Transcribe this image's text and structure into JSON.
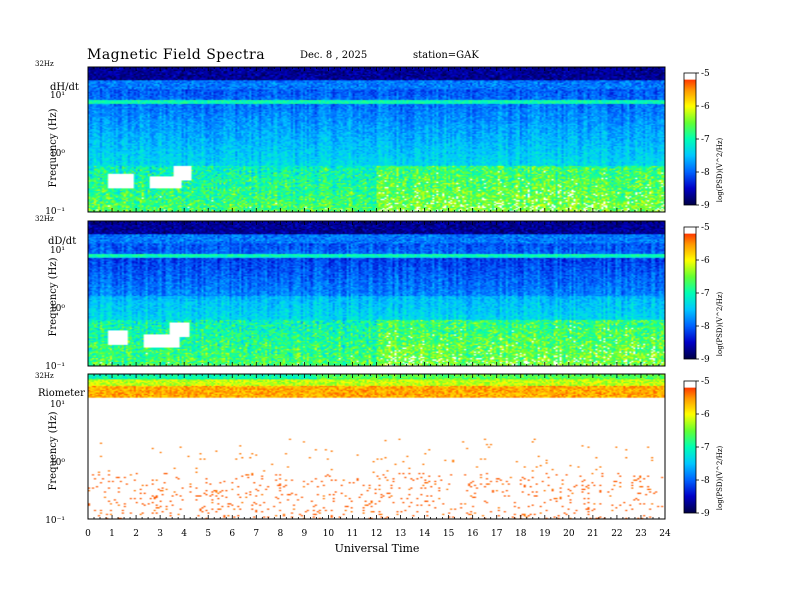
{
  "header": {
    "title": "Magnetic  Field  Spectra",
    "date": "Dec. 8  , 2025",
    "station": "station=GAK"
  },
  "colors": {
    "cmap": [
      "#00004a",
      "#0000c8",
      "#0064ff",
      "#00c8ff",
      "#00ffb4",
      "#64ff32",
      "#ffff00",
      "#ff9600",
      "#ff0000",
      "#ffffff"
    ]
  },
  "chart_data": [
    {
      "type": "heatmap",
      "panel_label": "dH/dt",
      "ylabel": "Frequency  (Hz)",
      "top_label": "32Hz",
      "ytick_labels": [
        "10¹",
        "10⁰",
        "10⁻¹"
      ],
      "y_range_log10_hz": [
        -1,
        1.505
      ],
      "x_range_hours": [
        0,
        24
      ],
      "colorbar": {
        "label": "log(PSD)(V^2/Hz)",
        "ticks": [
          "-5",
          "-6",
          "-7",
          "-8",
          "-9"
        ],
        "range": [
          -9,
          -5
        ]
      },
      "blank_regions": [
        {
          "hours": [
            0.8,
            1.9
          ],
          "log10_hz": [
            -0.6,
            -0.35
          ]
        },
        {
          "hours": [
            2.5,
            3.9
          ],
          "log10_hz": [
            -0.6,
            -0.4
          ]
        },
        {
          "hours": [
            3.5,
            4.3
          ],
          "log10_hz": [
            -0.45,
            -0.2
          ]
        }
      ]
    },
    {
      "type": "heatmap",
      "panel_label": "dD/dt",
      "ylabel": "Frequency  (Hz)",
      "top_label": "32Hz",
      "ytick_labels": [
        "10¹",
        "10⁰",
        "10⁻¹"
      ],
      "y_range_log10_hz": [
        -1,
        1.505
      ],
      "x_range_hours": [
        0,
        24
      ],
      "colorbar": {
        "label": "log(PSD)(V^2/Hz)",
        "ticks": [
          "-5",
          "-6",
          "-7",
          "-8",
          "-9"
        ],
        "range": [
          -9,
          -5
        ]
      },
      "blank_regions": [
        {
          "hours": [
            0.8,
            1.6
          ],
          "log10_hz": [
            -0.65,
            -0.4
          ]
        },
        {
          "hours": [
            2.3,
            3.8
          ],
          "log10_hz": [
            -0.7,
            -0.45
          ]
        },
        {
          "hours": [
            3.4,
            4.2
          ],
          "log10_hz": [
            -0.5,
            -0.25
          ]
        }
      ]
    },
    {
      "type": "heatmap",
      "panel_label": "Riometer",
      "ylabel": "Frequency  (Hz)",
      "top_label": "32Hz",
      "ytick_labels": [
        "10¹",
        "10⁰",
        "10⁻¹"
      ],
      "y_range_log10_hz": [
        -1,
        1.505
      ],
      "x_range_hours": [
        0,
        24
      ],
      "colorbar": {
        "label": "log(PSD)(V^2/Hz)",
        "ticks": [
          "-5",
          "-6",
          "-7",
          "-8",
          "-9"
        ],
        "range": [
          -9,
          -5
        ]
      }
    }
  ],
  "x_axis": {
    "label": "Universal  Time",
    "tick_labels": [
      "0",
      "1",
      "2",
      "3",
      "4",
      "5",
      "6",
      "7",
      "8",
      "9",
      "10",
      "11",
      "12",
      "13",
      "14",
      "15",
      "16",
      "17",
      "18",
      "19",
      "20",
      "21",
      "22",
      "23",
      "24"
    ]
  }
}
